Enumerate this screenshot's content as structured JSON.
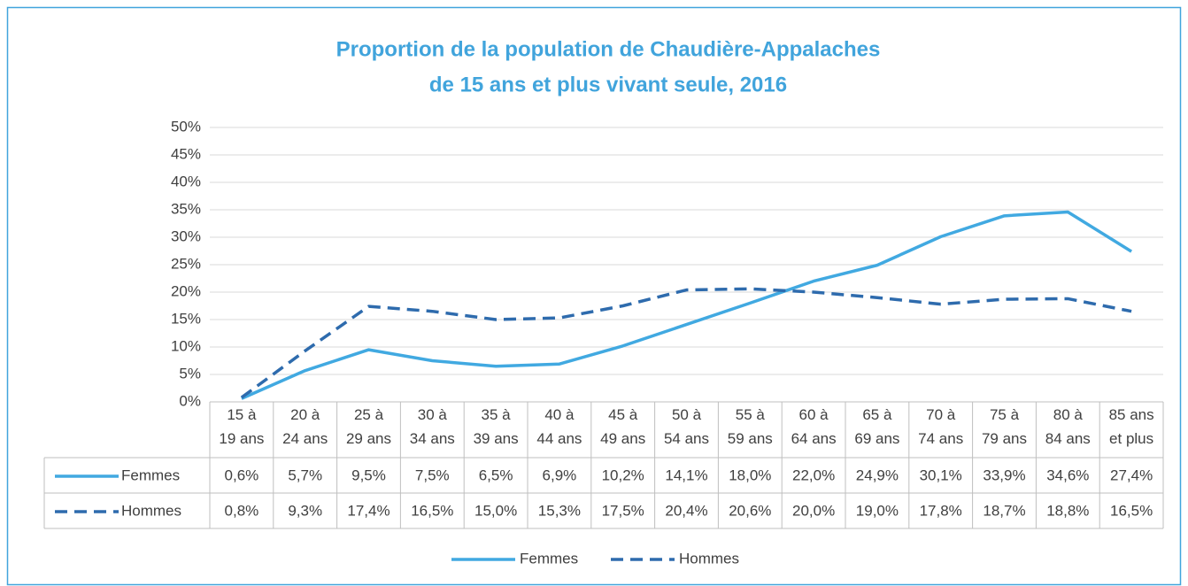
{
  "chart_data": {
    "type": "line",
    "title": [
      "Proportion de la population de Chaudière-Appalaches",
      "de 15 ans et plus vivant seule, 2016"
    ],
    "categories": [
      "15 à 19 ans",
      "20 à 24 ans",
      "25 à 29 ans",
      "30 à 34 ans",
      "35 à 39 ans",
      "40 à 44 ans",
      "45 à 49 ans",
      "50 à 54 ans",
      "55 à 59 ans",
      "60 à 64 ans",
      "65 à 69 ans",
      "70 à 74 ans",
      "75 à 79 ans",
      "80 à 84 ans",
      "85 ans et plus"
    ],
    "series": [
      {
        "name": "Femmes",
        "color": "#41a9e1",
        "dash": false,
        "values": [
          0.6,
          5.7,
          9.5,
          7.5,
          6.5,
          6.9,
          10.2,
          14.1,
          18.0,
          22.0,
          24.9,
          30.1,
          33.9,
          34.6,
          27.4
        ],
        "value_labels": [
          "0,6%",
          "5,7%",
          "9,5%",
          "7,5%",
          "6,5%",
          "6,9%",
          "10,2%",
          "14,1%",
          "18,0%",
          "22,0%",
          "24,9%",
          "30,1%",
          "33,9%",
          "34,6%",
          "27,4%"
        ]
      },
      {
        "name": "Hommes",
        "color": "#2e6bad",
        "dash": true,
        "values": [
          0.8,
          9.3,
          17.4,
          16.5,
          15.0,
          15.3,
          17.5,
          20.4,
          20.6,
          20.0,
          19.0,
          17.8,
          18.7,
          18.8,
          16.5
        ],
        "value_labels": [
          "0,8%",
          "9,3%",
          "17,4%",
          "16,5%",
          "15,0%",
          "15,3%",
          "17,5%",
          "20,4%",
          "20,6%",
          "20,0%",
          "19,0%",
          "17,8%",
          "18,7%",
          "18,8%",
          "16,5%"
        ]
      }
    ],
    "ylim": [
      0,
      50
    ],
    "yticks": [
      {
        "value": 0,
        "label": "0%"
      },
      {
        "value": 5,
        "label": "5%"
      },
      {
        "value": 10,
        "label": "10%"
      },
      {
        "value": 15,
        "label": "15%"
      },
      {
        "value": 20,
        "label": "20%"
      },
      {
        "value": 25,
        "label": "25%"
      },
      {
        "value": 30,
        "label": "30%"
      },
      {
        "value": 35,
        "label": "35%"
      },
      {
        "value": 40,
        "label": "40%"
      },
      {
        "value": 45,
        "label": "45%"
      },
      {
        "value": 50,
        "label": "50%"
      }
    ],
    "grid": true,
    "data_table": true,
    "legend": "bottom"
  }
}
